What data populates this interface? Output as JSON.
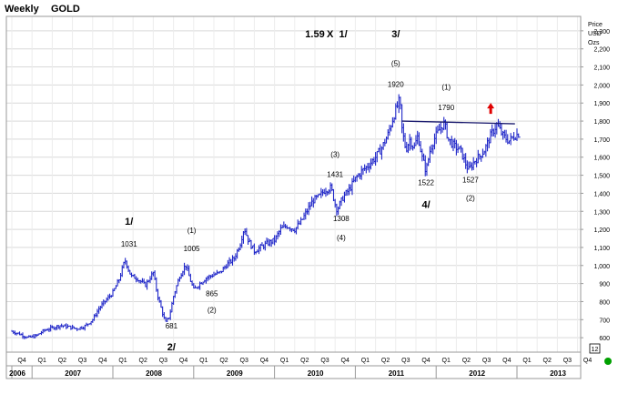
{
  "header": {
    "period": "Weekly",
    "symbol": "GOLD"
  },
  "colors": {
    "price": "#1f26c8",
    "resistance": "#1a1a6e",
    "arrow": "#e00000",
    "grid": "#d9d9d9",
    "frame": "#9a9a9a",
    "status": "#00a000",
    "text": "#000000"
  },
  "chart_data": {
    "type": "line",
    "style": "weekly OHLC bars",
    "ylabel": [
      "Price",
      "USD",
      "Ozs"
    ],
    "ylim": [
      520,
      2380
    ],
    "y_ticks": [
      600,
      700,
      800,
      900,
      1000,
      1100,
      1200,
      1300,
      1400,
      1500,
      1600,
      1700,
      1800,
      1900,
      2000,
      2100,
      2200,
      2300
    ],
    "y_tick_labels": [
      "600",
      "700",
      "800",
      "900",
      "1,000",
      "1,100",
      "1,200",
      "1,300",
      "1,400",
      "1,500",
      "1,600",
      "1,700",
      "1,800",
      "1,900",
      "2,000",
      "2,100",
      "2,200",
      "2,300"
    ],
    "quarters": [
      "Q4",
      "Q1",
      "Q2",
      "Q3",
      "Q4",
      "Q1",
      "Q2",
      "Q3",
      "Q4",
      "Q1",
      "Q2",
      "Q3",
      "Q4",
      "Q1",
      "Q2",
      "Q3",
      "Q4",
      "Q1",
      "Q2",
      "Q3",
      "Q4",
      "Q1",
      "Q2",
      "Q3",
      "Q4",
      "Q1",
      "Q2",
      "Q3",
      "Q4"
    ],
    "years": [
      "2006",
      "2007",
      "2008",
      "2009",
      "2010",
      "2011",
      "2012",
      "2013"
    ],
    "year_quarter_start": [
      0,
      1,
      5,
      9,
      13,
      17,
      21,
      25
    ],
    "right_box": "12",
    "series": [
      {
        "points": [
          [
            0,
            635
          ],
          [
            0.4,
            620
          ],
          [
            0.8,
            600
          ],
          [
            1.2,
            610
          ],
          [
            1.6,
            640
          ],
          [
            2,
            655
          ],
          [
            2.4,
            668
          ],
          [
            2.8,
            660
          ],
          [
            3.2,
            650
          ],
          [
            3.6,
            662
          ],
          [
            4,
            700
          ],
          [
            4.3,
            760
          ],
          [
            4.6,
            800
          ],
          [
            5,
            850
          ],
          [
            5.3,
            920
          ],
          [
            5.6,
            1031
          ],
          [
            5.9,
            940
          ],
          [
            6.2,
            930
          ],
          [
            6.6,
            890
          ],
          [
            7,
            960
          ],
          [
            7.2,
            840
          ],
          [
            7.4,
            760
          ],
          [
            7.6,
            681
          ],
          [
            7.8,
            720
          ],
          [
            8,
            830
          ],
          [
            8.3,
            940
          ],
          [
            8.6,
            1005
          ],
          [
            8.8,
            930
          ],
          [
            9,
            865
          ],
          [
            9.3,
            900
          ],
          [
            9.6,
            930
          ],
          [
            10,
            950
          ],
          [
            10.3,
            960
          ],
          [
            10.6,
            1000
          ],
          [
            11,
            1040
          ],
          [
            11.3,
            1120
          ],
          [
            11.5,
            1210
          ],
          [
            11.7,
            1140
          ],
          [
            12,
            1080
          ],
          [
            12.3,
            1100
          ],
          [
            12.6,
            1120
          ],
          [
            13,
            1140
          ],
          [
            13.3,
            1200
          ],
          [
            13.6,
            1220
          ],
          [
            14,
            1200
          ],
          [
            14.3,
            1240
          ],
          [
            14.6,
            1300
          ],
          [
            14.9,
            1360
          ],
          [
            15.2,
            1380
          ],
          [
            15.5,
            1420
          ],
          [
            15.8,
            1431
          ],
          [
            16,
            1340
          ],
          [
            16.1,
            1308
          ],
          [
            16.4,
            1380
          ],
          [
            16.7,
            1420
          ],
          [
            17,
            1480
          ],
          [
            17.3,
            1520
          ],
          [
            17.6,
            1550
          ],
          [
            18,
            1600
          ],
          [
            18.3,
            1650
          ],
          [
            18.6,
            1720
          ],
          [
            18.9,
            1830
          ],
          [
            19.2,
            1920
          ],
          [
            19.3,
            1760
          ],
          [
            19.5,
            1640
          ],
          [
            19.7,
            1700
          ],
          [
            19.9,
            1650
          ],
          [
            20.1,
            1720
          ],
          [
            20.3,
            1600
          ],
          [
            20.5,
            1522
          ],
          [
            20.7,
            1640
          ],
          [
            20.9,
            1700
          ],
          [
            21.2,
            1760
          ],
          [
            21.4,
            1790
          ],
          [
            21.6,
            1700
          ],
          [
            21.9,
            1660
          ],
          [
            22.2,
            1640
          ],
          [
            22.4,
            1580
          ],
          [
            22.6,
            1527
          ],
          [
            22.9,
            1580
          ],
          [
            23.1,
            1600
          ],
          [
            23.4,
            1640
          ],
          [
            23.7,
            1720
          ],
          [
            24,
            1780
          ],
          [
            24.3,
            1720
          ],
          [
            24.6,
            1690
          ],
          [
            24.9,
            1720
          ],
          [
            25.1,
            1730
          ]
        ]
      }
    ],
    "annotations": [
      {
        "text": "1.59",
        "x": 15.0,
        "y": 2265
      },
      {
        "text": "X",
        "x": 15.75,
        "y": 2265
      },
      {
        "text": "1/",
        "x": 16.4,
        "y": 2265
      },
      {
        "text": "3/",
        "x": 19.0,
        "y": 2265
      },
      {
        "text": "(5)",
        "x": 19.0,
        "y": 2105
      },
      {
        "text": "1920",
        "x": 19.0,
        "y": 1990
      },
      {
        "text": "(1)",
        "x": 21.5,
        "y": 1975
      },
      {
        "text": "1790",
        "x": 21.5,
        "y": 1860
      },
      {
        "text": "(3)",
        "x": 16.0,
        "y": 1600
      },
      {
        "text": "1431",
        "x": 16.0,
        "y": 1490
      },
      {
        "text": "1522",
        "x": 20.5,
        "y": 1445
      },
      {
        "text": "1527",
        "x": 22.7,
        "y": 1460
      },
      {
        "text": "4/",
        "x": 20.5,
        "y": 1320
      },
      {
        "text": "(2)",
        "x": 22.7,
        "y": 1360
      },
      {
        "text": "1308",
        "x": 16.3,
        "y": 1245
      },
      {
        "text": "(4)",
        "x": 16.3,
        "y": 1140
      },
      {
        "text": "1/",
        "x": 5.8,
        "y": 1225
      },
      {
        "text": "1031",
        "x": 5.8,
        "y": 1105
      },
      {
        "text": "(1)",
        "x": 8.9,
        "y": 1180
      },
      {
        "text": "1005",
        "x": 8.9,
        "y": 1080
      },
      {
        "text": "865",
        "x": 9.9,
        "y": 830
      },
      {
        "text": "(2)",
        "x": 9.9,
        "y": 740
      },
      {
        "text": "681",
        "x": 7.9,
        "y": 650
      },
      {
        "text": "2/",
        "x": 7.9,
        "y": 530
      }
    ],
    "resistance_line": [
      [
        19.3,
        1800
      ],
      [
        24.9,
        1785
      ]
    ],
    "up_arrow": {
      "x": 23.7,
      "y": 1870
    },
    "grid": true,
    "legend": "none"
  }
}
